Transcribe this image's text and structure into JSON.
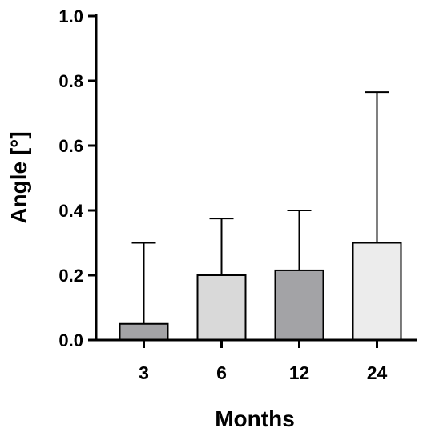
{
  "chart_data": {
    "type": "bar",
    "categories": [
      "3",
      "6",
      "12",
      "24"
    ],
    "values": [
      0.05,
      0.2,
      0.215,
      0.3
    ],
    "error_upper": [
      0.3,
      0.375,
      0.4,
      0.765
    ],
    "bar_colors": [
      "#a3a3a6",
      "#d9d9d9",
      "#a3a3a6",
      "#ececec"
    ],
    "xlabel": "Months",
    "ylabel": "Angle [°]",
    "ylim": [
      0,
      1.0
    ],
    "yticks": [
      "0.0",
      "0.2",
      "0.4",
      "0.6",
      "0.8",
      "1.0"
    ],
    "grid": false,
    "legend": "none"
  }
}
